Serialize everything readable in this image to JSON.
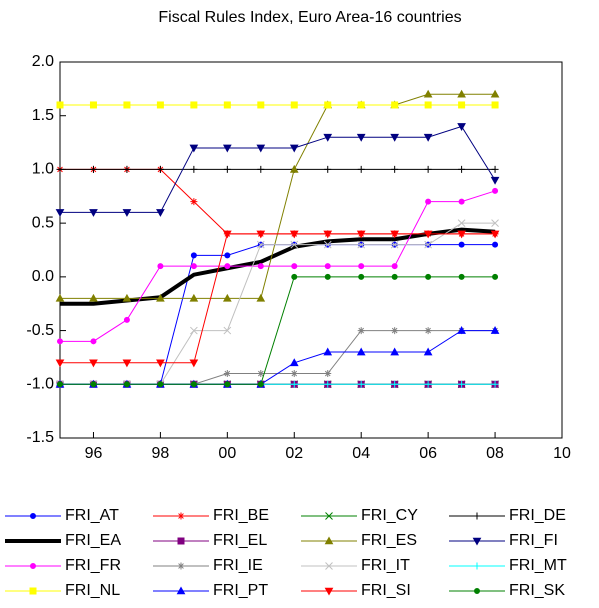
{
  "chart_data": {
    "type": "line",
    "title": "Fiscal Rules Index, Euro Area-16 countries",
    "x": [
      1995,
      1996,
      1997,
      1998,
      1999,
      2000,
      2001,
      2002,
      2003,
      2004,
      2005,
      2006,
      2007,
      2008
    ],
    "xlim": [
      1995,
      2010
    ],
    "xticks": [
      {
        "value": 1996,
        "label": "96"
      },
      {
        "value": 1998,
        "label": "98"
      },
      {
        "value": 2000,
        "label": "00"
      },
      {
        "value": 2002,
        "label": "02"
      },
      {
        "value": 2004,
        "label": "04"
      },
      {
        "value": 2006,
        "label": "06"
      },
      {
        "value": 2008,
        "label": "08"
      },
      {
        "value": 2010,
        "label": "10"
      }
    ],
    "ylim": [
      -1.5,
      2.0
    ],
    "yticks": [
      {
        "value": -1.5,
        "label": "-1.5"
      },
      {
        "value": -1.0,
        "label": "-1.0"
      },
      {
        "value": -0.5,
        "label": "-0.5"
      },
      {
        "value": 0,
        "label": "0.0"
      },
      {
        "value": 0.5,
        "label": "0.5"
      },
      {
        "value": 1.0,
        "label": "1.0"
      },
      {
        "value": 1.5,
        "label": "1.5"
      },
      {
        "value": 2.0,
        "label": "2.0"
      }
    ],
    "grid": false,
    "series": [
      {
        "name": "FRI_AT",
        "color": "#0000ff",
        "marker": "circle",
        "values": [
          -1,
          -1,
          -1,
          -1,
          0.2,
          0.2,
          0.3,
          0.3,
          0.3,
          0.3,
          0.3,
          0.3,
          0.3,
          0.3
        ]
      },
      {
        "name": "FRI_BE",
        "color": "#ff0000",
        "marker": "star",
        "values": [
          1,
          1,
          1,
          1,
          0.7,
          0.4,
          0.4,
          0.4,
          0.4,
          0.4,
          0.4,
          0.4,
          0.4,
          0.4
        ]
      },
      {
        "name": "FRI_CY",
        "color": "#008000",
        "marker": "x",
        "values": [
          -1,
          -1,
          -1,
          -1,
          -1,
          -1,
          -1,
          -1,
          -1,
          -1,
          -1,
          -1,
          -1,
          -1
        ]
      },
      {
        "name": "FRI_DE",
        "color": "#000000",
        "marker": "plus",
        "values": [
          1,
          1,
          1,
          1,
          1,
          1,
          1,
          1,
          1,
          1,
          1,
          1,
          1,
          1
        ]
      },
      {
        "name": "FRI_EA",
        "color": "#000000",
        "marker": "none",
        "width": 4,
        "values": [
          -0.25,
          -0.25,
          -0.22,
          -0.19,
          0.02,
          0.08,
          0.14,
          0.28,
          0.33,
          0.35,
          0.35,
          0.4,
          0.44,
          0.42
        ]
      },
      {
        "name": "FRI_EL",
        "color": "#800080",
        "marker": "square",
        "values": [
          -1,
          -1,
          -1,
          -1,
          -1,
          -1,
          -1,
          -1,
          -1,
          -1,
          -1,
          -1,
          -1,
          -1
        ]
      },
      {
        "name": "FRI_ES",
        "color": "#808000",
        "marker": "triangle",
        "values": [
          -0.2,
          -0.2,
          -0.2,
          -0.2,
          -0.2,
          -0.2,
          -0.2,
          1.0,
          1.6,
          1.6,
          1.6,
          1.7,
          1.7,
          1.7
        ]
      },
      {
        "name": "FRI_FI",
        "color": "#000080",
        "marker": "triangle-down",
        "values": [
          0.6,
          0.6,
          0.6,
          0.6,
          1.2,
          1.2,
          1.2,
          1.2,
          1.3,
          1.3,
          1.3,
          1.3,
          1.4,
          0.9
        ]
      },
      {
        "name": "FRI_FR",
        "color": "#ff00ff",
        "marker": "circle",
        "values": [
          -0.6,
          -0.6,
          -0.4,
          0.1,
          0.1,
          0.1,
          0.1,
          0.1,
          0.1,
          0.1,
          0.1,
          0.7,
          0.7,
          0.8
        ]
      },
      {
        "name": "FRI_IE",
        "color": "#808080",
        "marker": "star",
        "values": [
          -1,
          -1,
          -1,
          -1,
          -1,
          -0.9,
          -0.9,
          -0.9,
          -0.9,
          -0.5,
          -0.5,
          -0.5,
          -0.5,
          -0.5
        ]
      },
      {
        "name": "FRI_IT",
        "color": "#c0c0c0",
        "marker": "x",
        "values": [
          -1,
          -1,
          -1,
          -1,
          -0.5,
          -0.5,
          0.3,
          0.3,
          0.3,
          0.3,
          0.3,
          0.3,
          0.5,
          0.5
        ]
      },
      {
        "name": "FRI_MT",
        "color": "#00ffff",
        "marker": "plus",
        "values": [
          -1,
          -1,
          -1,
          -1,
          -1,
          -1,
          -1,
          -1,
          -1,
          -1,
          -1,
          -1,
          -1,
          -1
        ]
      },
      {
        "name": "FRI_NL",
        "color": "#ffff00",
        "marker": "square",
        "values": [
          1.6,
          1.6,
          1.6,
          1.6,
          1.6,
          1.6,
          1.6,
          1.6,
          1.6,
          1.6,
          1.6,
          1.6,
          1.6,
          1.6
        ]
      },
      {
        "name": "FRI_PT",
        "color": "#0000ff",
        "marker": "triangle",
        "values": [
          -1,
          -1,
          -1,
          -1,
          -1,
          -1,
          -1,
          -0.8,
          -0.7,
          -0.7,
          -0.7,
          -0.7,
          -0.5,
          -0.5
        ]
      },
      {
        "name": "FRI_SI",
        "color": "#ff0000",
        "marker": "triangle-down",
        "values": [
          -0.8,
          -0.8,
          -0.8,
          -0.8,
          -0.8,
          0.4,
          0.4,
          0.4,
          0.4,
          0.4,
          0.4,
          0.4,
          0.4,
          0.4
        ]
      },
      {
        "name": "FRI_SK",
        "color": "#008000",
        "marker": "circle",
        "values": [
          -1,
          -1,
          -1,
          -1,
          -1,
          -1,
          -1,
          0,
          0,
          0,
          0,
          0,
          0,
          0
        ]
      }
    ]
  }
}
